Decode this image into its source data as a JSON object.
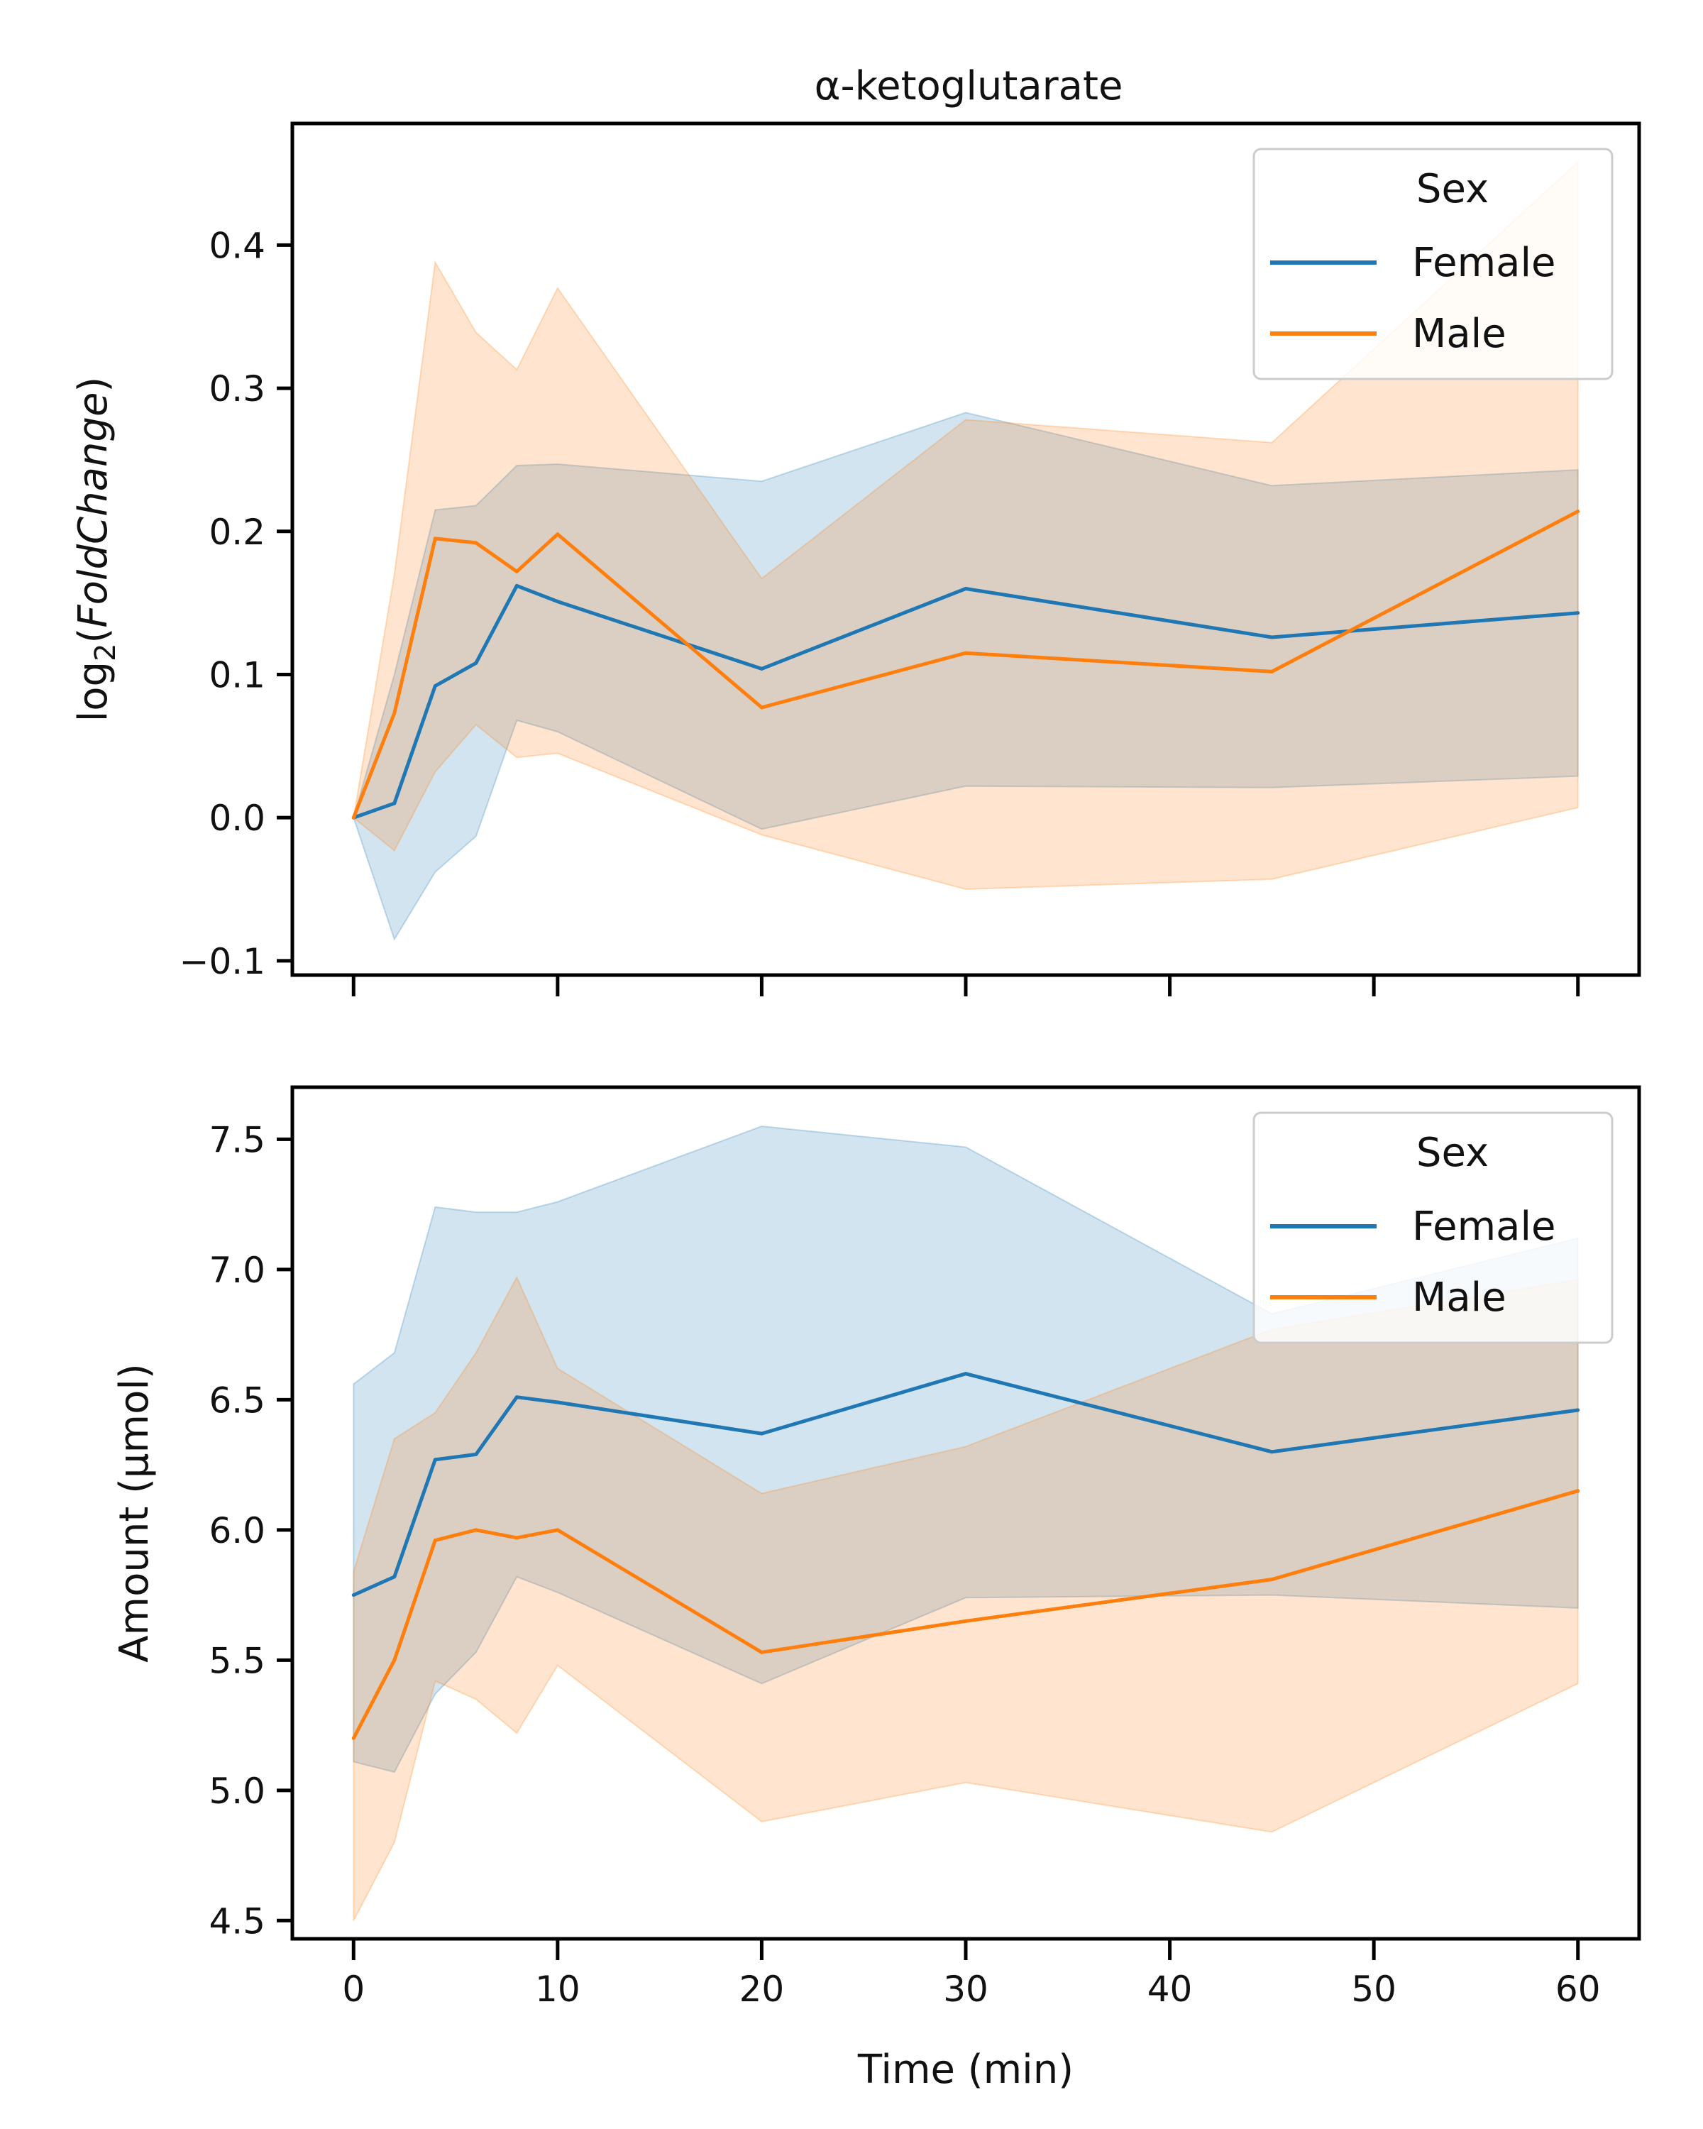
{
  "colors": {
    "female": "#1f77b4",
    "male": "#ff7f0e"
  },
  "chart_data": [
    {
      "type": "line",
      "title": "α-ketoglutarate",
      "xlabel": "",
      "ylabel": "log2(FoldChange)",
      "xlim": [
        -3,
        63
      ],
      "ylim": [
        -0.11,
        0.485
      ],
      "x_ticks": [
        0,
        10,
        20,
        30,
        40,
        50,
        60
      ],
      "x_tick_labels": [
        "",
        "",
        "",
        "",
        "",
        "",
        ""
      ],
      "y_ticks": [
        -0.1,
        0.0,
        0.1,
        0.2,
        0.3,
        0.4
      ],
      "y_tick_labels": [
        "−0.1",
        "0.0",
        "0.1",
        "0.2",
        "0.3",
        "0.4"
      ],
      "legend": {
        "title": "Sex",
        "placement": "top-right",
        "entries": [
          "Female",
          "Male"
        ]
      },
      "series": [
        {
          "name": "Female",
          "color": "#1f77b4",
          "x": [
            0,
            2,
            4,
            6,
            8,
            10,
            20,
            30,
            45,
            60
          ],
          "y": [
            0.0,
            0.01,
            0.092,
            0.108,
            0.162,
            0.151,
            0.104,
            0.16,
            0.126,
            0.143
          ],
          "ci_upper": [
            0.0,
            0.1,
            0.215,
            0.218,
            0.246,
            0.247,
            0.235,
            0.283,
            0.232,
            0.243
          ],
          "ci_lower": [
            0.0,
            -0.085,
            -0.038,
            -0.013,
            0.068,
            0.06,
            -0.008,
            0.022,
            0.021,
            0.029
          ]
        },
        {
          "name": "Male",
          "color": "#ff7f0e",
          "x": [
            0,
            2,
            4,
            6,
            8,
            10,
            20,
            30,
            45,
            60
          ],
          "y": [
            0.0,
            0.073,
            0.195,
            0.192,
            0.172,
            0.198,
            0.077,
            0.115,
            0.102,
            0.214
          ],
          "ci_upper": [
            0.0,
            0.17,
            0.388,
            0.339,
            0.313,
            0.37,
            0.167,
            0.278,
            0.262,
            0.458
          ],
          "ci_lower": [
            0.0,
            -0.023,
            0.032,
            0.065,
            0.042,
            0.045,
            -0.012,
            -0.05,
            -0.043,
            0.007
          ]
        }
      ]
    },
    {
      "type": "line",
      "title": "",
      "xlabel": "Time (min)",
      "ylabel": "Amount (μmol)",
      "xlim": [
        -3,
        63
      ],
      "ylim": [
        4.43,
        7.7
      ],
      "x_ticks": [
        0,
        10,
        20,
        30,
        40,
        50,
        60
      ],
      "x_tick_labels": [
        "0",
        "10",
        "20",
        "30",
        "40",
        "50",
        "60"
      ],
      "y_ticks": [
        4.5,
        5.0,
        5.5,
        6.0,
        6.5,
        7.0,
        7.5
      ],
      "y_tick_labels": [
        "4.5",
        "5.0",
        "5.5",
        "6.0",
        "6.5",
        "7.0",
        "7.5"
      ],
      "legend": {
        "title": "Sex",
        "placement": "top-right",
        "entries": [
          "Female",
          "Male"
        ]
      },
      "series": [
        {
          "name": "Female",
          "color": "#1f77b4",
          "x": [
            0,
            2,
            4,
            6,
            8,
            10,
            20,
            30,
            45,
            60
          ],
          "y": [
            5.75,
            5.82,
            6.27,
            6.29,
            6.51,
            6.49,
            6.37,
            6.6,
            6.3,
            6.46
          ],
          "ci_upper": [
            6.56,
            6.68,
            7.24,
            7.22,
            7.22,
            7.26,
            7.55,
            7.47,
            6.83,
            7.12
          ],
          "ci_lower": [
            5.11,
            5.07,
            5.37,
            5.53,
            5.82,
            5.76,
            5.41,
            5.74,
            5.75,
            5.7
          ]
        },
        {
          "name": "Male",
          "color": "#ff7f0e",
          "x": [
            0,
            2,
            4,
            6,
            8,
            10,
            20,
            30,
            45,
            60
          ],
          "y": [
            5.2,
            5.5,
            5.96,
            6.0,
            5.97,
            6.0,
            5.53,
            5.65,
            5.81,
            6.15
          ],
          "ci_upper": [
            5.84,
            6.35,
            6.45,
            6.68,
            6.97,
            6.62,
            6.14,
            6.32,
            6.77,
            6.96
          ],
          "ci_lower": [
            4.5,
            4.8,
            5.42,
            5.35,
            5.22,
            5.48,
            4.88,
            5.03,
            4.84,
            5.41
          ]
        }
      ]
    }
  ]
}
